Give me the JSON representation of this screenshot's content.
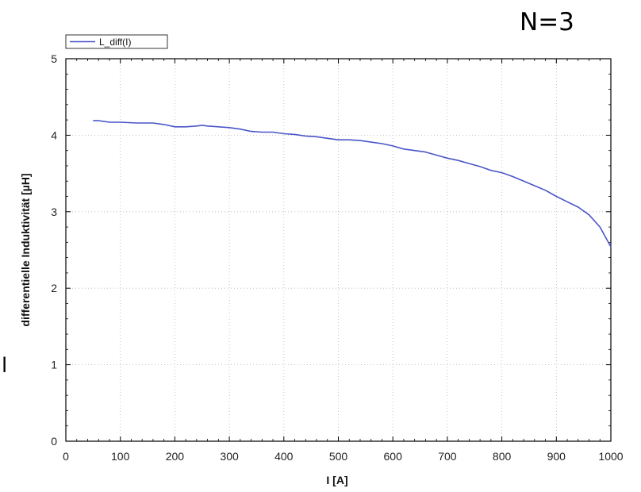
{
  "annotations": {
    "n_label": "N=3",
    "side_mark": "l"
  },
  "chart_data": {
    "type": "line",
    "xlabel": "I [A]",
    "ylabel": "differentielle Induktivität [µH]",
    "xlim": [
      0,
      1000
    ],
    "ylim": [
      0,
      5
    ],
    "xticks": [
      0,
      100,
      200,
      300,
      400,
      500,
      600,
      700,
      800,
      900,
      1000
    ],
    "yticks": [
      0,
      1,
      2,
      3,
      4,
      5
    ],
    "grid": true,
    "legend": {
      "placement": "top-left",
      "entries": [
        "L_diff(I)"
      ]
    },
    "series": [
      {
        "name": "L_diff(I)",
        "color": "#4a55c8",
        "x": [
          50,
          60,
          80,
          100,
          130,
          160,
          180,
          200,
          220,
          240,
          250,
          260,
          280,
          300,
          320,
          340,
          360,
          380,
          400,
          420,
          440,
          460,
          480,
          500,
          520,
          540,
          560,
          580,
          600,
          620,
          640,
          660,
          680,
          700,
          720,
          740,
          760,
          780,
          800,
          820,
          840,
          860,
          880,
          900,
          920,
          940,
          960,
          980,
          1000
        ],
        "values": [
          4.19,
          4.19,
          4.17,
          4.17,
          4.16,
          4.16,
          4.14,
          4.11,
          4.11,
          4.12,
          4.13,
          4.12,
          4.11,
          4.1,
          4.08,
          4.05,
          4.04,
          4.04,
          4.02,
          4.01,
          3.99,
          3.98,
          3.96,
          3.94,
          3.94,
          3.93,
          3.91,
          3.89,
          3.86,
          3.82,
          3.8,
          3.78,
          3.74,
          3.7,
          3.67,
          3.63,
          3.59,
          3.54,
          3.51,
          3.46,
          3.4,
          3.34,
          3.28,
          3.2,
          3.13,
          3.06,
          2.96,
          2.8,
          2.54
        ]
      }
    ]
  }
}
